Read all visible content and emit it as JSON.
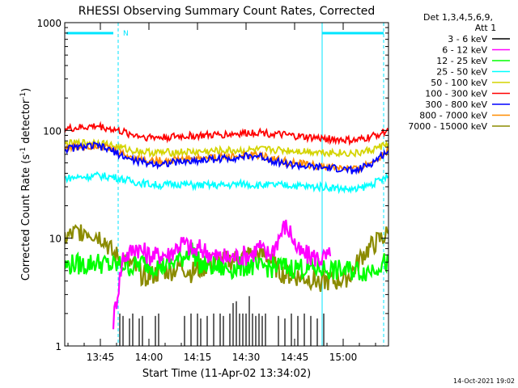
{
  "chart_data": {
    "type": "line",
    "title": "RHESSI Observing Summary Count Rates, Corrected",
    "xlabel": "Start Time (11-Apr-02 13:34:02)",
    "ylabel_main": "Corrected Count Rate (s",
    "ylabel_sup1": "-1",
    "ylabel_mid": " detector",
    "ylabel_sup2": "-1",
    "ylabel_end": ")",
    "y_scale": "log",
    "ylim": [
      1,
      1000
    ],
    "xlim_minutes": [
      0,
      100
    ],
    "y_ticks": [
      {
        "value": 1,
        "label": "1"
      },
      {
        "value": 10,
        "label": "10"
      },
      {
        "value": 100,
        "label": "100"
      },
      {
        "value": 1000,
        "label": "1000"
      }
    ],
    "x_ticks": [
      {
        "minute": 11,
        "label": "13:45"
      },
      {
        "minute": 26,
        "label": "14:00"
      },
      {
        "minute": 41,
        "label": "14:15"
      },
      {
        "minute": 56,
        "label": "14:30"
      },
      {
        "minute": 71,
        "label": "14:45"
      },
      {
        "minute": 86,
        "label": "15:00"
      }
    ],
    "legend_title_1": "Det 1,3,4,5,6,9,",
    "legend_title_2": "Att 1",
    "legend_position": "right",
    "series": [
      {
        "name": "3 - 6 keV",
        "color": "#000000",
        "x": [
          17,
          18,
          20,
          21,
          23,
          24,
          28,
          29,
          37,
          39,
          41,
          42,
          44,
          46,
          48,
          49,
          51,
          52,
          53,
          54,
          55,
          56,
          57,
          58,
          59,
          60,
          61,
          62,
          66,
          68,
          70,
          72,
          74,
          76,
          78,
          80
        ],
        "y": [
          2,
          1.9,
          1.8,
          2,
          1.8,
          1.9,
          1.9,
          2,
          1.9,
          2,
          2,
          1.8,
          1.9,
          2,
          2,
          1.9,
          2,
          2.5,
          2.6,
          2,
          2,
          2,
          2.9,
          2,
          1.9,
          2,
          1.9,
          2,
          1.9,
          1.8,
          2,
          1.9,
          2,
          1.9,
          1.8,
          2
        ]
      },
      {
        "name": "6 - 12 keV",
        "color": "#ff00ff",
        "x": [
          15,
          18,
          20,
          22,
          24,
          26,
          28,
          30,
          32,
          34,
          36,
          38,
          40,
          42,
          44,
          46,
          48,
          50,
          52,
          54,
          56,
          58,
          60,
          62,
          64,
          66,
          68,
          70,
          72,
          74,
          76,
          78,
          80,
          82
        ],
        "y": [
          1.7,
          6.8,
          7.2,
          8.5,
          7.5,
          7,
          6.8,
          7.2,
          7,
          8,
          9,
          8.5,
          7.5,
          8,
          7.5,
          6.8,
          6.7,
          6.5,
          6.7,
          6.8,
          7,
          7.2,
          8.5,
          7,
          7.5,
          10,
          13,
          11,
          7.5,
          7,
          6.8,
          6.6,
          6.5,
          6.8
        ]
      },
      {
        "name": "12 - 25 keV",
        "color": "#00ff00",
        "x": [
          0,
          3,
          6,
          9,
          12,
          15,
          18,
          21,
          24,
          27,
          30,
          33,
          36,
          39,
          42,
          45,
          48,
          51,
          54,
          57,
          60,
          62,
          64,
          66,
          68,
          70,
          72,
          74,
          76,
          78,
          80,
          82,
          84,
          86,
          88,
          90,
          92,
          94,
          96,
          98,
          100
        ],
        "y": [
          5.5,
          5.8,
          5.6,
          6,
          5.8,
          5.5,
          5.7,
          5.4,
          5.9,
          5.6,
          5.5,
          5.8,
          6.5,
          8,
          5.6,
          5.5,
          5.3,
          5.2,
          5.4,
          5.6,
          5.2,
          5.5,
          5.3,
          5.5,
          5.4,
          5.3,
          5.4,
          5.3,
          5.2,
          5.3,
          5.2,
          5.1,
          5,
          5,
          5,
          5.1,
          4.9,
          5,
          5.5,
          5.8,
          6
        ]
      },
      {
        "name": "25 - 50 keV",
        "color": "#00ffff",
        "x": [
          0,
          5,
          10,
          15,
          20,
          25,
          30,
          35,
          40,
          45,
          50,
          55,
          60,
          65,
          70,
          75,
          80,
          85,
          90,
          95,
          100
        ],
        "y": [
          36,
          37,
          38,
          37,
          34,
          32,
          31,
          32,
          31,
          31,
          31,
          32,
          31,
          31,
          31,
          30,
          30,
          29,
          28,
          32,
          37
        ]
      },
      {
        "name": "50 - 100 keV",
        "color": "#d4d400",
        "x": [
          0,
          5,
          10,
          15,
          20,
          25,
          30,
          35,
          40,
          45,
          50,
          55,
          60,
          65,
          70,
          75,
          80,
          85,
          90,
          95,
          100
        ],
        "y": [
          75,
          76,
          78,
          72,
          66,
          63,
          62,
          63,
          63,
          64,
          65,
          65,
          66,
          66,
          65,
          64,
          63,
          62,
          61,
          66,
          76
        ]
      },
      {
        "name": "100 - 300 keV",
        "color": "#ff0000",
        "x": [
          0,
          5,
          10,
          15,
          20,
          25,
          30,
          35,
          40,
          45,
          50,
          55,
          60,
          65,
          70,
          75,
          80,
          85,
          90,
          95,
          100
        ],
        "y": [
          103,
          106,
          110,
          102,
          93,
          87,
          86,
          88,
          89,
          90,
          92,
          94,
          97,
          92,
          89,
          86,
          84,
          82,
          80,
          88,
          100
        ]
      },
      {
        "name": "300 - 800 keV",
        "color": "#0000ff",
        "x": [
          0,
          5,
          10,
          15,
          20,
          25,
          30,
          35,
          40,
          45,
          50,
          55,
          60,
          65,
          70,
          75,
          80,
          85,
          90,
          95,
          100
        ],
        "y": [
          67,
          70,
          72,
          64,
          54,
          50,
          49,
          51,
          52,
          54,
          55,
          57,
          58,
          52,
          48,
          46,
          45,
          44,
          42,
          50,
          65
        ]
      },
      {
        "name": "800 - 7000 keV",
        "color": "#ff8c00",
        "x": [
          0,
          5,
          10,
          15,
          20,
          25,
          30,
          35,
          40,
          45,
          50,
          55,
          60,
          65,
          70,
          75,
          80,
          85,
          90,
          95,
          100
        ],
        "y": [
          69,
          71,
          73,
          66,
          57,
          53,
          52,
          54,
          55,
          56,
          57,
          58,
          59,
          54,
          50,
          48,
          46,
          45,
          43,
          51,
          66
        ]
      },
      {
        "name": "7000 - 15000 keV",
        "color": "#8b8b00",
        "x": [
          0,
          3,
          6,
          9,
          12,
          15,
          18,
          21,
          24,
          27,
          30,
          33,
          36,
          39,
          42,
          45,
          48,
          51,
          54,
          57,
          60,
          62,
          64,
          66,
          68,
          70,
          72,
          74,
          76,
          78,
          80,
          82,
          84,
          86,
          88,
          90,
          92,
          94,
          96,
          98,
          100
        ],
        "y": [
          10,
          11,
          12,
          11,
          10,
          7,
          6.5,
          5.5,
          4.5,
          4.5,
          5,
          5,
          5.5,
          4.8,
          5.2,
          5.8,
          6,
          6.2,
          6.5,
          7,
          7,
          6.8,
          6,
          5,
          4.6,
          4.5,
          4.4,
          4.3,
          4.2,
          4,
          4,
          4,
          4,
          4.2,
          4.5,
          5.5,
          7,
          8,
          9,
          10,
          11
        ]
      }
    ],
    "segments": [
      {
        "label": "N"
      }
    ],
    "spike_label": "",
    "grid": false
  },
  "timestamp": "14-Oct-2021 19:02"
}
